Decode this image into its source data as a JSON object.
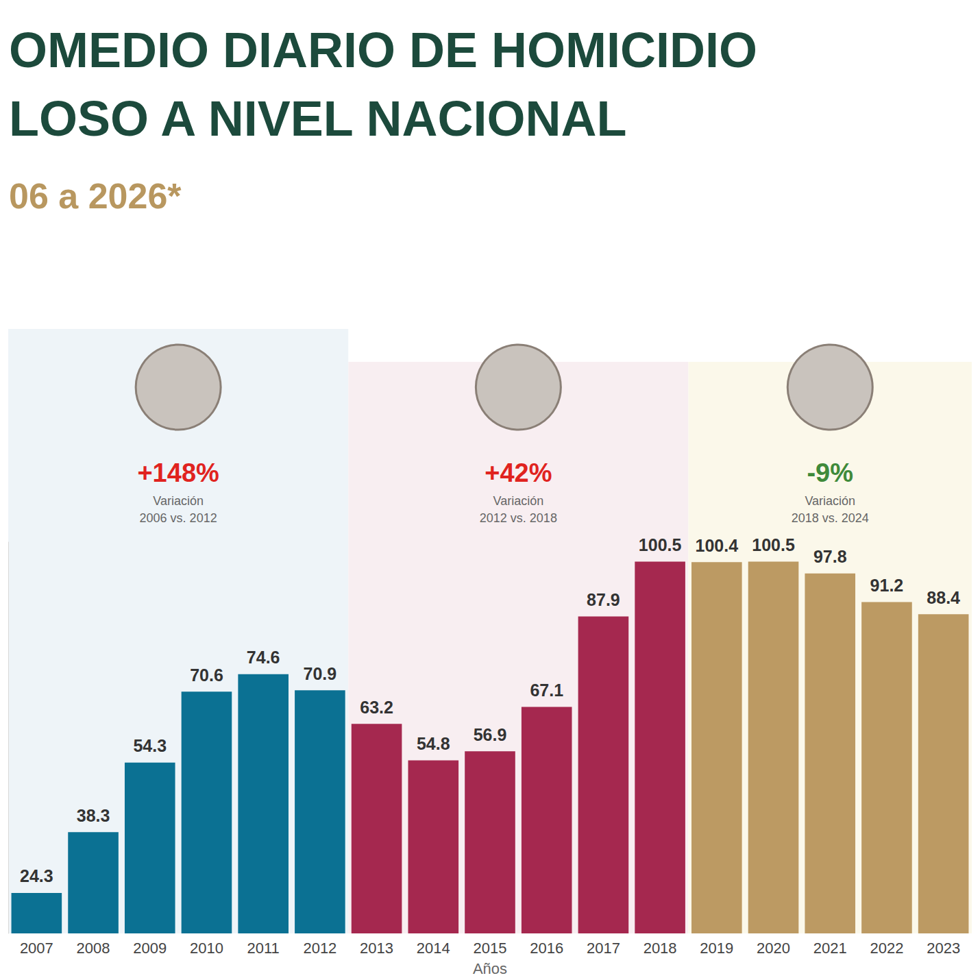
{
  "chart_data": {
    "type": "bar",
    "title": "OMEDIO DIARIO DE HOMICIDIO\nLOSO A NIVEL NACIONAL",
    "subtitle": "06 a 2026*",
    "x_label": "Años",
    "categories": [
      "2007",
      "2008",
      "2009",
      "2010",
      "2011",
      "2012",
      "2013",
      "2014",
      "2015",
      "2016",
      "2017",
      "2018",
      "2019",
      "2020",
      "2021",
      "2022",
      "2023"
    ],
    "values": [
      24.3,
      38.3,
      54.3,
      70.6,
      74.6,
      70.9,
      63.2,
      54.8,
      56.9,
      67.1,
      87.9,
      100.5,
      100.4,
      100.5,
      97.8,
      91.2,
      88.4
    ],
    "colors": [
      "#0b7193",
      "#0b7193",
      "#0b7193",
      "#0b7193",
      "#0b7193",
      "#0b7193",
      "#a5284f",
      "#a5284f",
      "#a5284f",
      "#a5284f",
      "#a5284f",
      "#a5284f",
      "#bc9a63",
      "#bc9a63",
      "#bc9a63",
      "#bc9a63",
      "#bc9a63"
    ],
    "ylim": [
      15,
      105
    ],
    "tick_labels": "x",
    "grid": false,
    "data_labels": true,
    "annotations": [
      {
        "text": "+148%",
        "label": "Variación",
        "period": "2006 vs. 2012"
      },
      {
        "text": "+42%",
        "label": "Variación",
        "period": "2012 vs. 2018"
      },
      {
        "text": "-9%",
        "label": "Variación",
        "period": "2018 vs. 2024"
      }
    ]
  }
}
